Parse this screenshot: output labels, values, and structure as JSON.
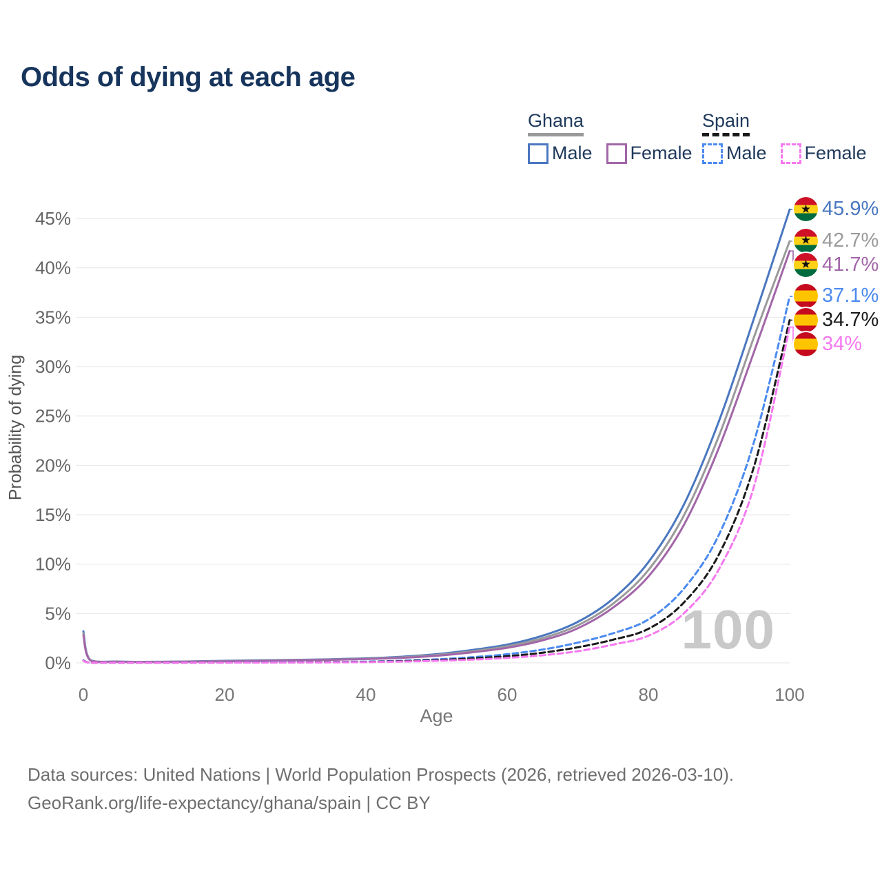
{
  "title": "Odds of dying at each age",
  "watermark_age": "100",
  "legend": {
    "groups": [
      {
        "country": "Ghana",
        "line_style": "solid",
        "key_color": "#9a9a9a",
        "items": [
          {
            "label": "Male",
            "color": "#4a77c0"
          },
          {
            "label": "Female",
            "color": "#a266a8"
          }
        ]
      },
      {
        "country": "Spain",
        "line_style": "dashed",
        "key_color": "#1a1a1a",
        "items": [
          {
            "label": "Male",
            "color": "#4b8af0"
          },
          {
            "label": "Female",
            "color": "#f678f0"
          }
        ]
      }
    ]
  },
  "footer": {
    "line1": "Data sources: United Nations | World Population Prospects (2026, retrieved 2026-03-10).",
    "line2": "GeoRank.org/life-expectancy/ghana/spain | CC BY"
  },
  "icons": {
    "ghana": "ghana-flag-icon",
    "spain": "spain-flag-icon"
  },
  "colors": {
    "title": "#17355c",
    "grid": "#ebebeb",
    "axis_tick_text": "#666666",
    "x_tick_text": "#777777",
    "watermark": "#c9c9c9",
    "footer_text": "#6f6f6f"
  },
  "chart_data": {
    "type": "line",
    "title": "Odds of dying at each age",
    "xlabel": "Age",
    "ylabel": "Probability of dying",
    "xlim": [
      0,
      100
    ],
    "ylim": [
      0,
      46
    ],
    "x_ticks": [
      0,
      20,
      40,
      60,
      80,
      100
    ],
    "y_ticks": [
      0,
      5,
      10,
      15,
      20,
      25,
      30,
      35,
      40,
      45
    ],
    "y_tick_suffix": "%",
    "grid": "horizontal",
    "legend_position": "top-right",
    "x": [
      0,
      1,
      5,
      10,
      15,
      20,
      25,
      30,
      35,
      40,
      45,
      50,
      55,
      60,
      65,
      70,
      75,
      80,
      85,
      90,
      95,
      100
    ],
    "series": [
      {
        "name": "Ghana Male",
        "country": "Ghana",
        "flag": "ghana",
        "color": "#4a77c0",
        "dashed": false,
        "end_label": "45.9%",
        "end_value": 45.9,
        "values": [
          3.2,
          0.28,
          0.13,
          0.11,
          0.15,
          0.21,
          0.26,
          0.31,
          0.37,
          0.46,
          0.62,
          0.88,
          1.3,
          1.85,
          2.75,
          4.15,
          6.5,
          10.2,
          16.0,
          24.5,
          35.0,
          45.9
        ]
      },
      {
        "name": "Ghana",
        "country": "Ghana",
        "flag": "ghana",
        "color": "#9a9a9a",
        "dashed": false,
        "end_label": "42.7%",
        "end_value": 42.7,
        "values": [
          3.0,
          0.26,
          0.12,
          0.1,
          0.13,
          0.18,
          0.23,
          0.28,
          0.34,
          0.42,
          0.56,
          0.8,
          1.18,
          1.68,
          2.5,
          3.8,
          6.0,
          9.4,
          14.9,
          23.0,
          33.1,
          42.7
        ]
      },
      {
        "name": "Ghana Female",
        "country": "Ghana",
        "flag": "ghana",
        "color": "#a266a8",
        "dashed": false,
        "end_label": "41.7%",
        "end_value": 41.7,
        "values": [
          2.8,
          0.24,
          0.11,
          0.09,
          0.12,
          0.16,
          0.2,
          0.25,
          0.31,
          0.39,
          0.51,
          0.72,
          1.07,
          1.52,
          2.28,
          3.5,
          5.6,
          8.75,
          13.95,
          21.8,
          31.6,
          41.7
        ]
      },
      {
        "name": "Spain Male",
        "country": "Spain",
        "flag": "spain",
        "color": "#4b8af0",
        "dashed": true,
        "end_label": "37.1%",
        "end_value": 37.1,
        "values": [
          0.25,
          0.02,
          0.01,
          0.01,
          0.03,
          0.05,
          0.06,
          0.07,
          0.09,
          0.13,
          0.21,
          0.36,
          0.57,
          0.88,
          1.35,
          2.05,
          3.0,
          4.4,
          7.5,
          13.0,
          22.5,
          37.1
        ]
      },
      {
        "name": "Spain",
        "country": "Spain",
        "flag": "spain",
        "color": "#1a1a1a",
        "dashed": true,
        "end_label": "34.7%",
        "end_value": 34.7,
        "values": [
          0.22,
          0.02,
          0.01,
          0.01,
          0.02,
          0.03,
          0.04,
          0.05,
          0.07,
          0.1,
          0.17,
          0.28,
          0.45,
          0.68,
          1.03,
          1.58,
          2.35,
          3.45,
          6.1,
          11.0,
          20.0,
          34.7
        ]
      },
      {
        "name": "Spain Female",
        "country": "Spain",
        "flag": "spain",
        "color": "#f678f0",
        "dashed": true,
        "end_label": "34%",
        "end_value": 34.0,
        "values": [
          0.2,
          0.02,
          0.01,
          0.01,
          0.02,
          0.02,
          0.03,
          0.04,
          0.05,
          0.08,
          0.13,
          0.21,
          0.33,
          0.5,
          0.77,
          1.18,
          1.85,
          2.75,
          5.0,
          9.5,
          18.0,
          34.0
        ]
      }
    ]
  }
}
